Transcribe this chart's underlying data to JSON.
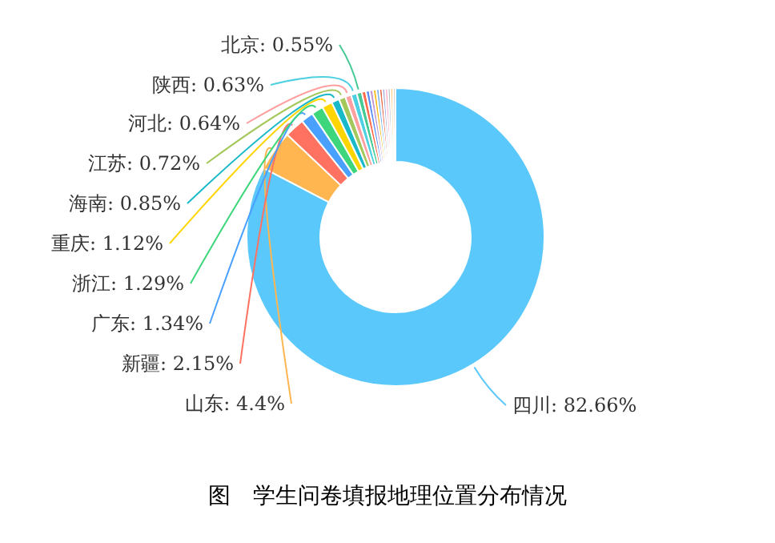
{
  "chart_data": {
    "type": "donut",
    "title": "图　学生问卷填报地理位置分布情况",
    "categories": [
      "四川",
      "山东",
      "新疆",
      "广东",
      "浙江",
      "重庆",
      "海南",
      "江苏",
      "河北",
      "陕西",
      "北京",
      null,
      null,
      null,
      null,
      null,
      null,
      null,
      null,
      null,
      null,
      null
    ],
    "values": [
      82.66,
      4.4,
      2.15,
      1.34,
      1.29,
      1.12,
      0.85,
      0.72,
      0.64,
      0.63,
      0.55,
      0.45,
      0.4,
      0.38,
      0.35,
      0.33,
      0.32,
      0.3,
      0.3,
      0.28,
      0.28,
      0.26
    ],
    "colors": [
      "#5ac8fa",
      "#ffb550",
      "#ff7262",
      "#4aa0ff",
      "#3ed67c",
      "#ffd500",
      "#1ab9c9",
      "#a5c85a",
      "#ff9f9f",
      "#4dd0e1",
      "#45c995",
      "#ff6b4a",
      "#5b8ff9",
      "#c39bd3",
      "#f6bd16",
      "#7cb5ec",
      "#e8684a",
      "#9fa8da",
      "#ffa7c4",
      "#b0bec5",
      "#ffcc80",
      "#d7ccc8"
    ],
    "value_labels": [
      ": 82.66%",
      ": 4.4%",
      ": 2.15%",
      ": 1.34%",
      ": 1.29%",
      ": 1.12%",
      ": 0.85%",
      ": 0.72%",
      ": 0.64%",
      ": 0.63%",
      ": 0.55%",
      null,
      null,
      null,
      null,
      null,
      null,
      null,
      null,
      null,
      null,
      null
    ]
  }
}
